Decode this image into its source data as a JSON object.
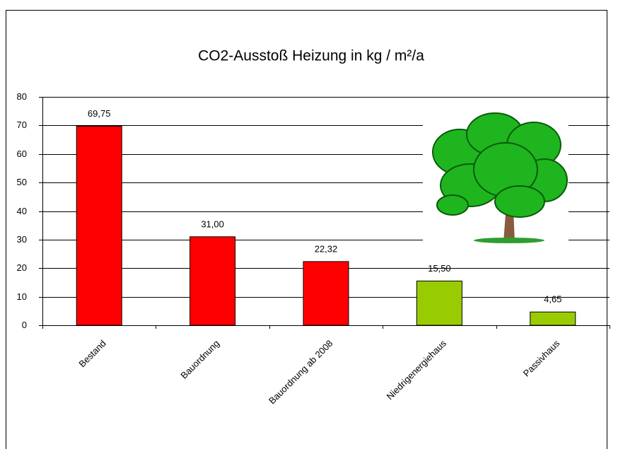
{
  "chart_data": {
    "type": "bar",
    "title": "CO2-Ausstoß Heizung in kg / m²/a",
    "categories": [
      "Bestand",
      "Bauordnung",
      "Bauordnung ab 2008",
      "Niedrigenergiehaus",
      "Passivhaus"
    ],
    "values": [
      69.75,
      31,
      22.32,
      15.5,
      4.65
    ],
    "value_labels": [
      "69,75",
      "31,00",
      "22,32",
      "15,50",
      "4,65"
    ],
    "colors": [
      "#ff0000",
      "#ff0000",
      "#ff0000",
      "#99cc00",
      "#99cc00"
    ],
    "ylim": [
      0,
      80
    ],
    "yticks": [
      0,
      10,
      20,
      30,
      40,
      50,
      60,
      70,
      80
    ],
    "grid": true
  }
}
